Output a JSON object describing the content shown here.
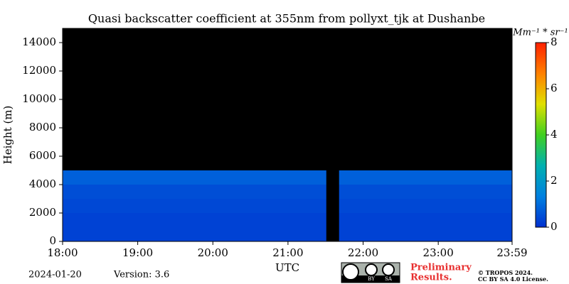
{
  "chart_data": {
    "type": "heatmap",
    "title": "Quasi backscatter coefficient at 355nm from pollyxt_tjk at Dushanbe",
    "ylabel": "Height (m)",
    "xlabel": "UTC",
    "x_bins": [
      18,
      21.51,
      21.68,
      23.983
    ],
    "y_bins": [
      0,
      1000,
      2000,
      3000,
      4000,
      5000,
      6000,
      7000,
      8000,
      9000,
      10000,
      11000,
      12000,
      13000,
      14000,
      15000
    ],
    "values": [
      [
        0.3,
        null,
        0.3
      ],
      [
        0.3,
        null,
        0.3
      ],
      [
        0.4,
        null,
        0.4
      ],
      [
        0.5,
        null,
        0.5
      ],
      [
        0.8,
        null,
        0.8
      ],
      [
        null,
        null,
        null
      ],
      [
        null,
        null,
        null
      ],
      [
        null,
        null,
        null
      ],
      [
        null,
        null,
        null
      ],
      [
        null,
        null,
        null
      ],
      [
        null,
        null,
        null
      ],
      [
        null,
        null,
        null
      ],
      [
        null,
        null,
        null
      ],
      [
        null,
        null,
        null
      ],
      [
        null,
        null,
        null
      ]
    ],
    "xlim": [
      18,
      23.983
    ],
    "xticks": [
      {
        "value": 18,
        "label": "18:00"
      },
      {
        "value": 19,
        "label": "19:00"
      },
      {
        "value": 20,
        "label": "20:00"
      },
      {
        "value": 21,
        "label": "21:00"
      },
      {
        "value": 22,
        "label": "22:00"
      },
      {
        "value": 23,
        "label": "23:00"
      },
      {
        "value": 23.983,
        "label": "23:59"
      }
    ],
    "ylim": [
      0,
      15000
    ],
    "yticks": [
      0,
      2000,
      4000,
      6000,
      8000,
      10000,
      12000,
      14000
    ],
    "background": "#000000",
    "colormap": [
      "#0030d0",
      "#0080e0",
      "#00b0b0",
      "#40d020",
      "#e0e000",
      "#ff8000",
      "#ff2000"
    ],
    "clim": [
      0,
      8
    ],
    "cticks": [
      0,
      2,
      4,
      6,
      8
    ],
    "colorbar_label": "Mm⁻¹ * sr⁻¹"
  },
  "footer": {
    "date": "2024-01-20",
    "version": "Version: 3.6",
    "badge": [
      "BY",
      "SA"
    ],
    "preliminary": [
      "Preliminary",
      "Results."
    ],
    "copyright": [
      "© TROPOS 2024.",
      "CC BY SA 4.0 License."
    ]
  }
}
